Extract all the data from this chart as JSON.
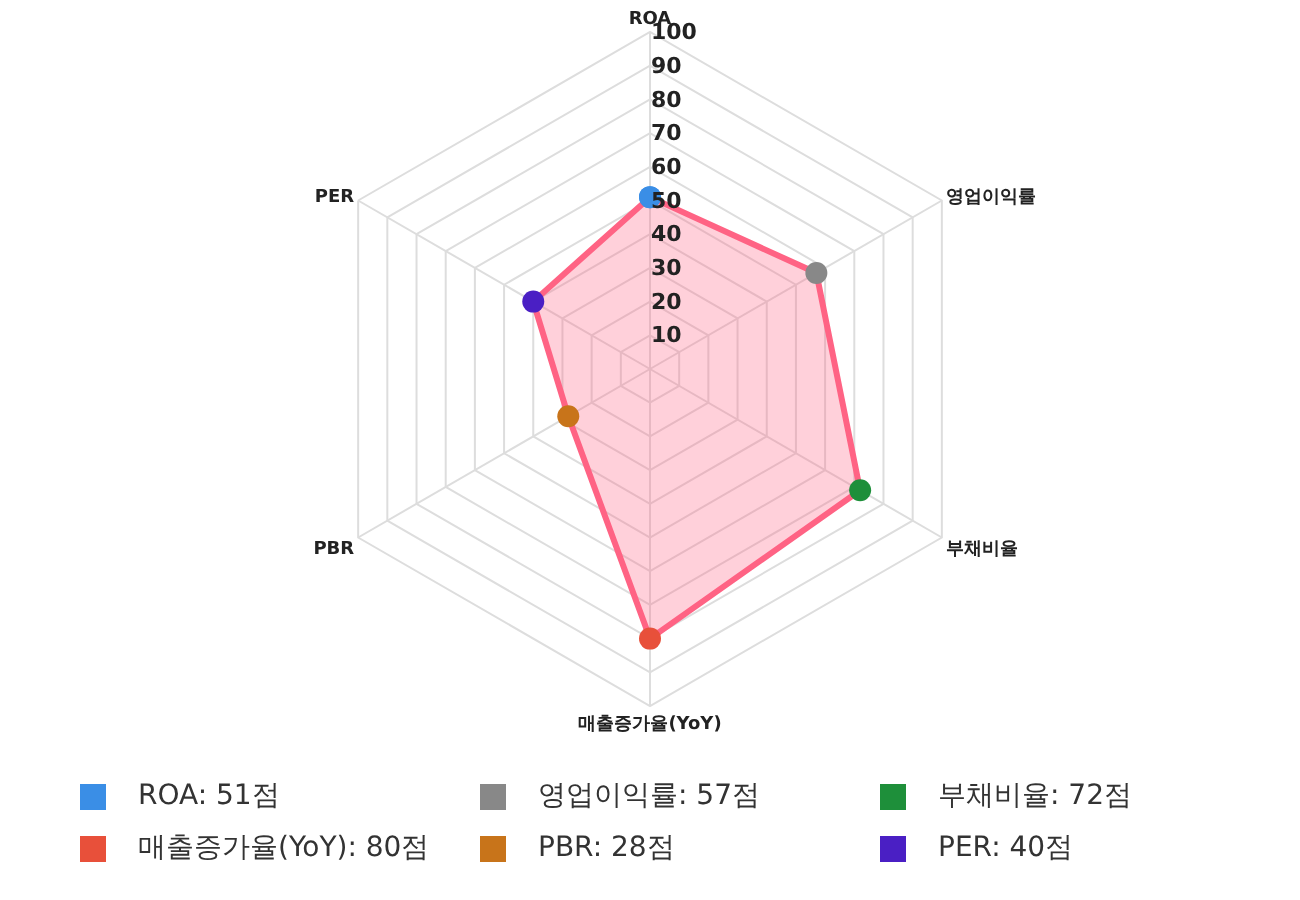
{
  "chart_data": {
    "type": "radar",
    "categories": [
      "ROA",
      "영업이익률",
      "부채비율",
      "매출증가율(YoY)",
      "PBR",
      "PER"
    ],
    "series": [
      {
        "color": "#ff6384",
        "values": [
          51,
          57,
          72,
          80,
          28,
          40
        ],
        "colors": [
          "#3a8ee6",
          "#888888",
          "#1e8f3a",
          "#e8503a",
          "#c8741a",
          "#4a1fc4"
        ]
      }
    ],
    "annotations": [
      "ROA: 51점",
      "영업이익률: 57점",
      "부채비율: 72점",
      "매출증가율(YoY): 80점",
      "PBR: 28점",
      "PER: 40점"
    ],
    "ylim": [
      0,
      100
    ],
    "yticks": [
      10,
      20,
      30,
      40,
      50,
      60,
      70,
      80,
      90,
      100
    ],
    "grid": true,
    "marker": "circle"
  }
}
